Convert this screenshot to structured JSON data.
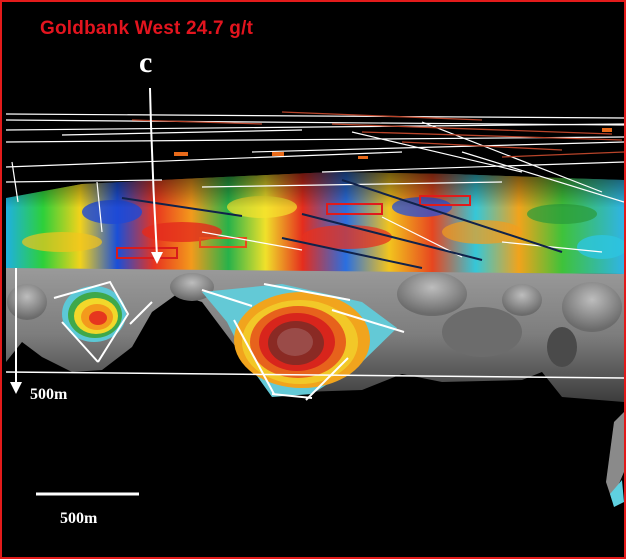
{
  "title": "Goldbank West 24.7 g/t",
  "marker_letter": "c",
  "depth_label": "500m",
  "scale_label": "500m",
  "colors": {
    "frame": "#e31b1b",
    "title": "#e3141e",
    "background": "#000000",
    "annotation": "#ffffff"
  }
}
